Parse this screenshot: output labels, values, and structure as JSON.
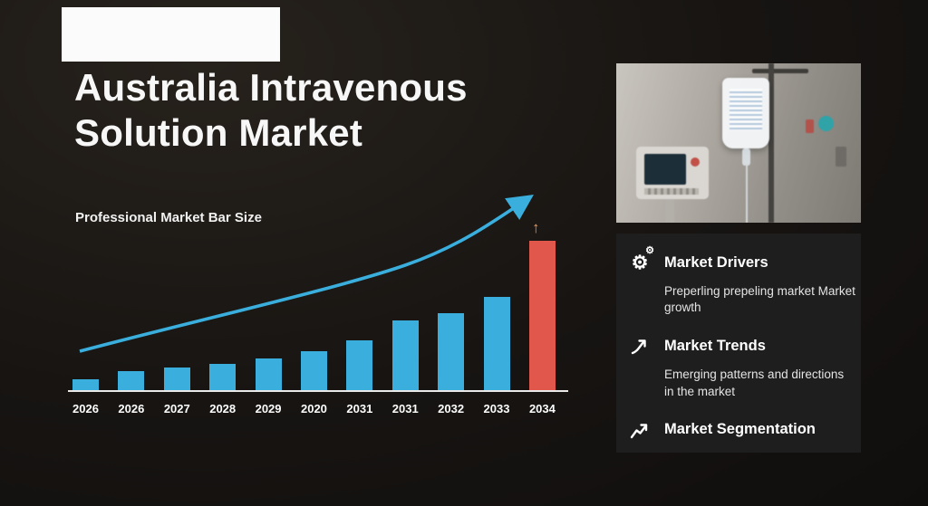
{
  "logo": {
    "alt": "logo placeholder"
  },
  "header": {
    "title": "Australia Intravenous Solution Market",
    "subtitle": "Professional Market Bar Size"
  },
  "chart_data": {
    "type": "bar",
    "title": "Professional Market Bar Size",
    "xlabel": "",
    "ylabel": "",
    "categories": [
      "2026",
      "2026",
      "2027",
      "2028",
      "2029",
      "2020",
      "2031",
      "2031",
      "2032",
      "2033",
      "2034"
    ],
    "values": [
      13,
      22,
      26,
      30,
      36,
      44,
      56,
      78,
      86,
      104,
      166
    ],
    "value_units": "relative bar height (no y-axis scale shown)",
    "highlight_index": 10,
    "bar_color": "#3aaedc",
    "highlight_color": "#e2574b",
    "trend_line_color": "#3aaedc",
    "highlight_arrow": "↑",
    "grid": false,
    "legend": false,
    "annotations": [
      "blue rising trend arrow over bars",
      "orange up arrow above 2034 bar"
    ]
  },
  "photo": {
    "alt": "IV drip bag on a pole with patient monitor in hospital room"
  },
  "sidebar": {
    "items": [
      {
        "icon": "gear-icon",
        "title": "Market Drivers",
        "desc": "Preperling prepeling market Market growth"
      },
      {
        "icon": "trend-arrow-icon",
        "title": "Market Trends",
        "desc": "Emerging patterns and directions in the market"
      },
      {
        "icon": "segmentation-chart-icon",
        "title": "Market Segmentation",
        "desc": ""
      }
    ]
  }
}
